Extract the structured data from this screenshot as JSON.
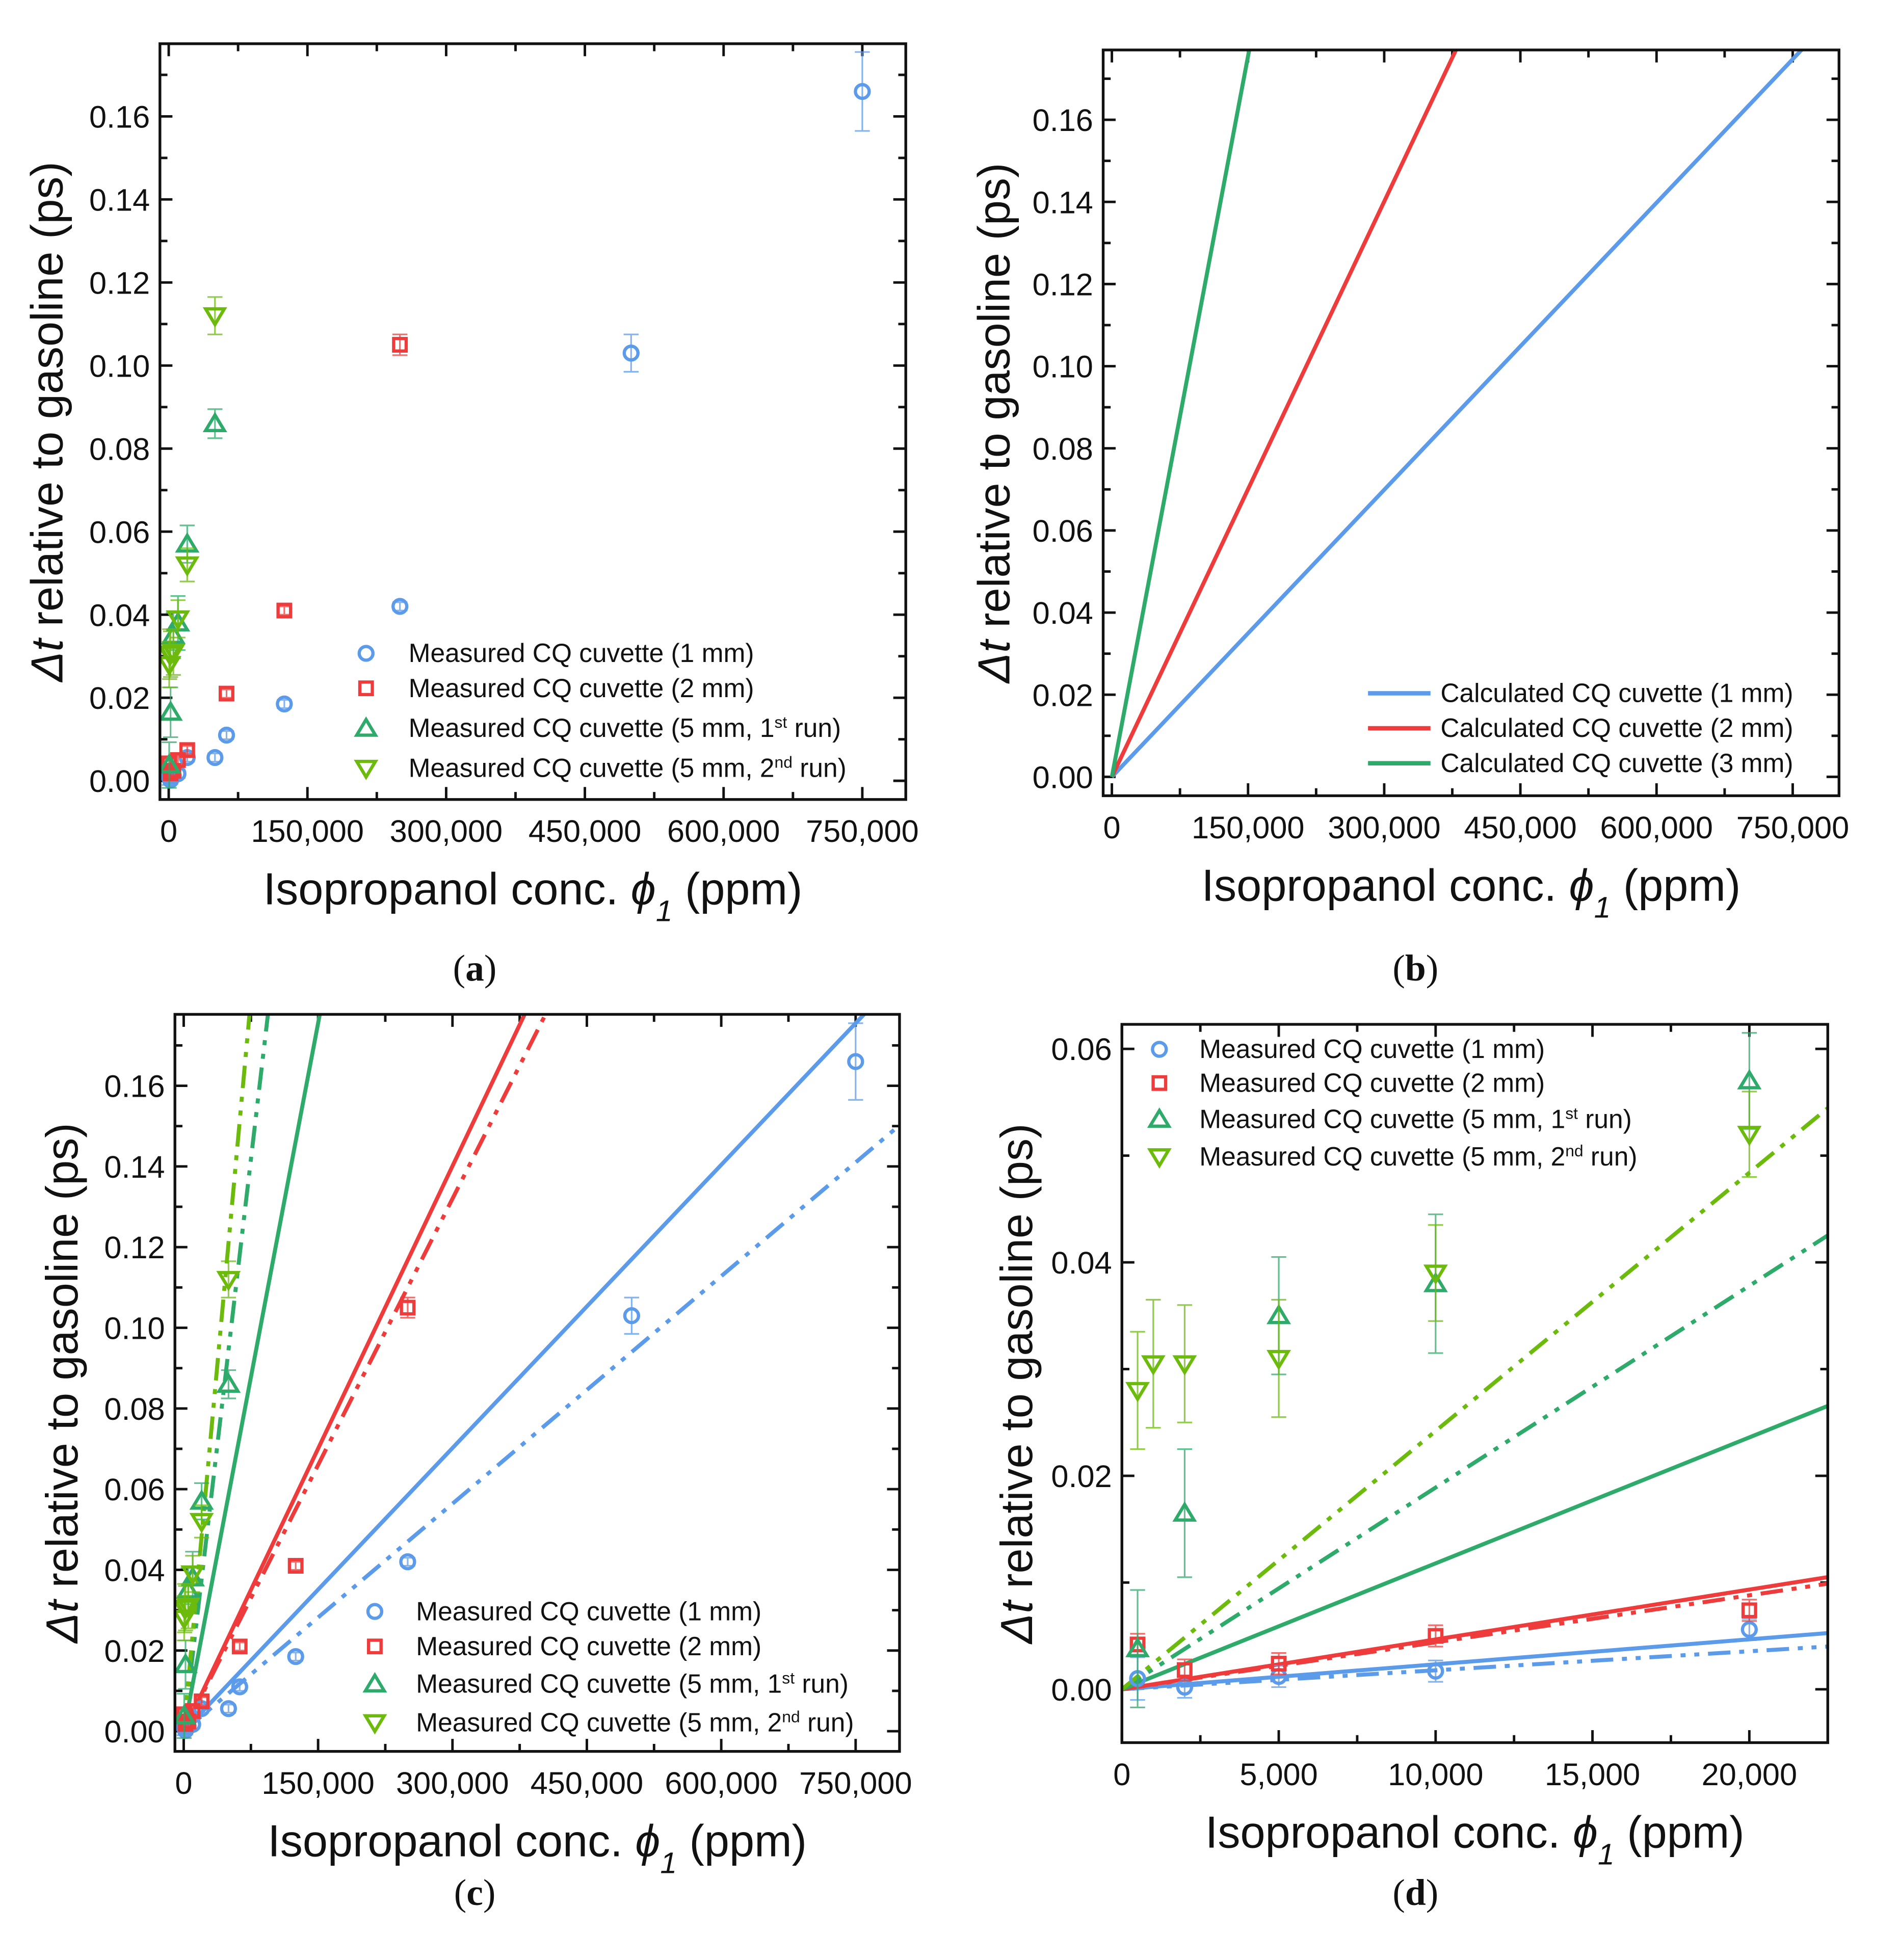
{
  "colors": {
    "blue": "#5B9BEA",
    "red": "#EE3B3B",
    "green": "#2EAA6A",
    "lime": "#6CBB0C"
  },
  "chart_data": [
    {
      "caption": "a",
      "type": "scatter",
      "xlabel": {
        "pre": "Isopropanol conc. ",
        "sym": "ϕ",
        "sub": "1",
        "post": " (ppm)"
      },
      "ylabel": {
        "sym": "Δt",
        "rest": " relative to gasoline (ps)"
      },
      "xlim": [
        -9500,
        797000
      ],
      "ylim": [
        -0.0045,
        0.1775
      ],
      "xticks": [
        {
          "v": 0,
          "label": "0"
        },
        {
          "v": 150000,
          "label": "150,000"
        },
        {
          "v": 300000,
          "label": "300,000"
        },
        {
          "v": 450000,
          "label": "450,000"
        },
        {
          "v": 600000,
          "label": "600,000"
        },
        {
          "v": 750000,
          "label": "750,000"
        }
      ],
      "yticks": [
        {
          "v": 0,
          "label": "0.00"
        },
        {
          "v": 0.02,
          "label": "0.02"
        },
        {
          "v": 0.04,
          "label": "0.04"
        },
        {
          "v": 0.06,
          "label": "0.06"
        },
        {
          "v": 0.08,
          "label": "0.08"
        },
        {
          "v": 0.1,
          "label": "0.10"
        },
        {
          "v": 0.12,
          "label": "0.12"
        },
        {
          "v": 0.14,
          "label": "0.14"
        },
        {
          "v": 0.16,
          "label": "0.16"
        }
      ],
      "series": [
        {
          "name": "Measured CQ cuvette (1 mm)",
          "sup": "",
          "tail": "",
          "marker": "circle",
          "color": "blue",
          "points": [
            [
              500,
              0.001,
              0.002
            ],
            [
              2000,
              0.0002,
              0.001
            ],
            [
              5000,
              0.0012,
              0.001
            ],
            [
              10000,
              0.0017,
              0.001
            ],
            [
              20000,
              0.0056,
              0.001
            ],
            [
              50000,
              0.0056,
              0.001
            ],
            [
              62500,
              0.011,
              0.001
            ],
            [
              125000,
              0.0185,
              0.001
            ],
            [
              250000,
              0.042,
              0.001
            ],
            [
              500000,
              0.103,
              0.0045
            ],
            [
              750000,
              0.166,
              0.0095
            ]
          ]
        },
        {
          "name": "Measured CQ cuvette (2 mm)",
          "sup": "",
          "tail": "",
          "marker": "square",
          "color": "red",
          "points": [
            [
              500,
              0.0042,
              0.001
            ],
            [
              2000,
              0.0018,
              0.001
            ],
            [
              5000,
              0.0024,
              0.001
            ],
            [
              10000,
              0.005,
              0.001
            ],
            [
              20000,
              0.0074,
              0.001
            ],
            [
              62500,
              0.021,
              0.001
            ],
            [
              125000,
              0.041,
              0.001
            ],
            [
              250000,
              0.105,
              0.0025
            ]
          ]
        },
        {
          "name": "Measured CQ cuvette (5 mm, 1",
          "sup": "st",
          "tail": " run)",
          "marker": "triangle-up",
          "color": "green",
          "points": [
            [
              500,
              0.0038,
              0.0055
            ],
            [
              2000,
              0.0165,
              0.006
            ],
            [
              5000,
              0.035,
              0.0055
            ],
            [
              10000,
              0.038,
              0.0065
            ],
            [
              20000,
              0.057,
              0.0045
            ],
            [
              50000,
              0.086,
              0.0035
            ]
          ]
        },
        {
          "name": "Measured CQ cuvette (5 mm, 2",
          "sup": "nd",
          "tail": " run)",
          "marker": "triangle-down",
          "color": "lime",
          "points": [
            [
              500,
              0.028,
              0.0055
            ],
            [
              1000,
              0.0305,
              0.006
            ],
            [
              2000,
              0.0305,
              0.0055
            ],
            [
              5000,
              0.031,
              0.0055
            ],
            [
              10000,
              0.039,
              0.0045
            ],
            [
              20000,
              0.052,
              0.004
            ],
            [
              50000,
              0.112,
              0.0045
            ]
          ]
        }
      ],
      "lines": [],
      "legend": "bottom-right"
    },
    {
      "caption": "b",
      "type": "line",
      "xlabel": {
        "pre": "Isopropanol conc. ",
        "sym": "ϕ",
        "sub": "1",
        "post": " (ppm)"
      },
      "ylabel": {
        "sym": "Δt",
        "rest": " relative to gasoline (ps)"
      },
      "xlim": [
        -9600,
        801000
      ],
      "ylim": [
        -0.0046,
        0.177
      ],
      "xticks": [
        {
          "v": 0,
          "label": "0"
        },
        {
          "v": 150000,
          "label": "150,000"
        },
        {
          "v": 300000,
          "label": "300,000"
        },
        {
          "v": 450000,
          "label": "450,000"
        },
        {
          "v": 600000,
          "label": "600,000"
        },
        {
          "v": 750000,
          "label": "750,000"
        }
      ],
      "yticks": [
        {
          "v": 0,
          "label": "0.00"
        },
        {
          "v": 0.02,
          "label": "0.02"
        },
        {
          "v": 0.04,
          "label": "0.04"
        },
        {
          "v": 0.06,
          "label": "0.06"
        },
        {
          "v": 0.08,
          "label": "0.08"
        },
        {
          "v": 0.1,
          "label": "0.10"
        },
        {
          "v": 0.12,
          "label": "0.12"
        },
        {
          "v": 0.14,
          "label": "0.14"
        },
        {
          "v": 0.16,
          "label": "0.16"
        }
      ],
      "series": [],
      "lines": [
        {
          "name": "Calculated CQ cuvette (1 mm)",
          "slope": 2.33e-07,
          "intercept": 0,
          "style": "solid",
          "color": "blue",
          "legend": true
        },
        {
          "name": "Calculated CQ cuvette (2 mm)",
          "slope": 4.67e-07,
          "intercept": 0,
          "style": "solid",
          "color": "red",
          "legend": true
        },
        {
          "name": "Calculated CQ cuvette (3 mm)",
          "slope": 1.17e-06,
          "intercept": 0,
          "style": "solid",
          "color": "green",
          "legend": true
        }
      ],
      "legend": "bottom-right"
    },
    {
      "caption": "c",
      "type": "scatter",
      "xlabel": {
        "pre": "Isopropanol conc. ",
        "sym": "ϕ",
        "sub": "1",
        "post": " (ppm)"
      },
      "ylabel": {
        "sym": "Δt",
        "rest": " relative to gasoline (ps)"
      },
      "xlim": [
        -9800,
        799000
      ],
      "ylim": [
        -0.005,
        0.1777
      ],
      "xticks": [
        {
          "v": 0,
          "label": "0"
        },
        {
          "v": 150000,
          "label": "150,000"
        },
        {
          "v": 300000,
          "label": "300,000"
        },
        {
          "v": 450000,
          "label": "450,000"
        },
        {
          "v": 600000,
          "label": "600,000"
        },
        {
          "v": 750000,
          "label": "750,000"
        }
      ],
      "yticks": [
        {
          "v": 0,
          "label": "0.00"
        },
        {
          "v": 0.02,
          "label": "0.02"
        },
        {
          "v": 0.04,
          "label": "0.04"
        },
        {
          "v": 0.06,
          "label": "0.06"
        },
        {
          "v": 0.08,
          "label": "0.08"
        },
        {
          "v": 0.1,
          "label": "0.10"
        },
        {
          "v": 0.12,
          "label": "0.12"
        },
        {
          "v": 0.14,
          "label": "0.14"
        },
        {
          "v": 0.16,
          "label": "0.16"
        }
      ],
      "series": "same-as-a",
      "lines": [
        {
          "slope": 2.34e-07,
          "intercept": 0,
          "style": "solid",
          "color": "blue"
        },
        {
          "slope": 1.88e-07,
          "intercept": 0,
          "style": "dashdot",
          "color": "blue"
        },
        {
          "slope": 4.67e-07,
          "intercept": 0,
          "style": "solid",
          "color": "red"
        },
        {
          "slope": 4.4e-07,
          "intercept": 0,
          "style": "dashdot",
          "color": "red"
        },
        {
          "slope": 1.17e-06,
          "intercept": 0,
          "style": "solid",
          "color": "green"
        },
        {
          "slope": 1.89e-06,
          "intercept": 0,
          "style": "dashdot",
          "color": "green"
        },
        {
          "slope": 2.42e-06,
          "intercept": 0,
          "style": "dashdot",
          "color": "lime"
        }
      ],
      "legend": "bottom-right"
    },
    {
      "caption": "d",
      "type": "scatter",
      "xlabel": {
        "pre": "Isopropanol conc. ",
        "sym": "ϕ",
        "sub": "1",
        "post": " (ppm)"
      },
      "ylabel": {
        "sym": "Δt",
        "rest": " relative to gasoline (ps)"
      },
      "xlim": [
        0,
        22500
      ],
      "ylim": [
        -0.005,
        0.0623
      ],
      "xticks": [
        {
          "v": 0,
          "label": "0"
        },
        {
          "v": 5000,
          "label": "5,000"
        },
        {
          "v": 10000,
          "label": "10,000"
        },
        {
          "v": 15000,
          "label": "15,000"
        },
        {
          "v": 20000,
          "label": "20,000"
        }
      ],
      "yticks": [
        {
          "v": 0,
          "label": "0.00"
        },
        {
          "v": 0.02,
          "label": "0.02"
        },
        {
          "v": 0.04,
          "label": "0.04"
        },
        {
          "v": 0.06,
          "label": "0.06"
        }
      ],
      "series": "same-as-a",
      "lines": [
        {
          "slope": 2.34e-07,
          "intercept": 0,
          "style": "solid",
          "color": "blue"
        },
        {
          "slope": 1.78e-07,
          "intercept": 0,
          "style": "dashdot",
          "color": "blue"
        },
        {
          "slope": 4.67e-07,
          "intercept": 0,
          "style": "solid",
          "color": "red"
        },
        {
          "slope": 4.4e-07,
          "intercept": 0,
          "style": "dashdot",
          "color": "red"
        },
        {
          "slope": 1.18e-06,
          "intercept": 0,
          "style": "solid",
          "color": "green"
        },
        {
          "slope": 1.89e-06,
          "intercept": 0,
          "style": "dashdot",
          "color": "green"
        },
        {
          "slope": 2.42e-06,
          "intercept": 0,
          "style": "dashdot",
          "color": "lime"
        }
      ],
      "legend": "top-left"
    }
  ]
}
